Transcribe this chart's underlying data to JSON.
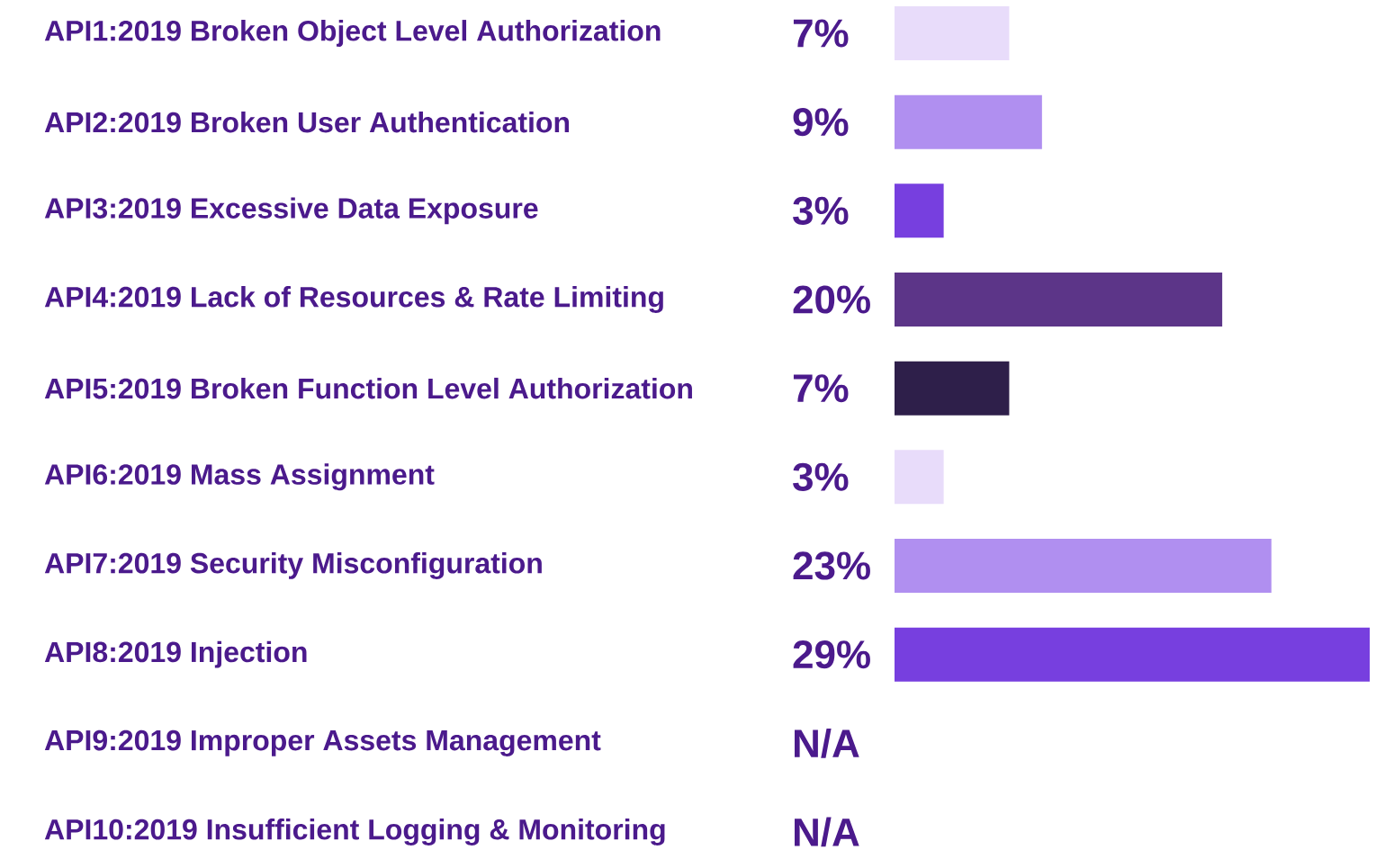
{
  "chart_data": {
    "type": "bar",
    "orientation": "horizontal",
    "categories": [
      "API1:2019 Broken Object Level Authorization",
      "API2:2019 Broken User Authentication",
      "API3:2019 Excessive Data Exposure",
      "API4:2019 Lack of Resources & Rate Limiting",
      "API5:2019 Broken Function Level Authorization",
      "API6:2019 Mass Assignment",
      "API7:2019 Security Misconfiguration",
      "API8:2019 Injection",
      "API9:2019 Improper Assets Management",
      "API10:2019 Insufficient Logging & Monitoring"
    ],
    "values": [
      7,
      9,
      3,
      20,
      7,
      3,
      23,
      29,
      null,
      null
    ],
    "colors": [
      "#e8dcfa",
      "#b08ff0",
      "#773fdf",
      "#5c3588",
      "#2e1f4a",
      "#e8dcfa",
      "#b08ff0",
      "#773fdf",
      "#773fdf",
      "#773fdf"
    ],
    "value_labels": [
      "7%",
      "9%",
      "3%",
      "20%",
      "7%",
      "3%",
      "23%",
      "29%",
      "N/A",
      "N/A"
    ]
  }
}
